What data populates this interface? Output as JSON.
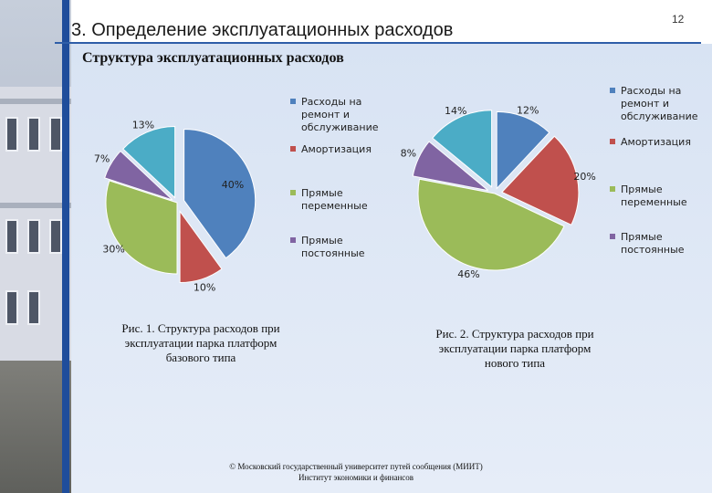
{
  "header": {
    "title": "3. Определение эксплуатационных расходов",
    "slide_number": "12"
  },
  "section_heading": "Структура эксплуатационных расходов",
  "colors": {
    "repair": "#4f81bd",
    "depreciation": "#c0504d",
    "variable": "#9bbb59",
    "constant": "#8064a2",
    "other": "#4bacc6"
  },
  "chart_data": [
    {
      "type": "pie",
      "slices": [
        {
          "label": "Расходы на ремонт и обслуживание",
          "value": 40,
          "text": "40%",
          "color": "#4f81bd"
        },
        {
          "label": "Амортизация",
          "value": 10,
          "text": "10%",
          "color": "#c0504d"
        },
        {
          "label": "Прямые переменные",
          "value": 30,
          "text": "30%",
          "color": "#9bbb59"
        },
        {
          "label": "Прямые постоянные",
          "value": 7,
          "text": "7%",
          "color": "#8064a2"
        },
        {
          "label": "",
          "value": 13,
          "text": "13%",
          "color": "#4bacc6"
        }
      ],
      "legend": [
        {
          "lines": [
            "Расходы на",
            "ремонт и",
            "обслуживание"
          ],
          "color": "#4f81bd"
        },
        {
          "lines": [
            "Амортизация"
          ],
          "color": "#c0504d"
        },
        {
          "lines": [
            "Прямые",
            "переменные"
          ],
          "color": "#9bbb59"
        },
        {
          "lines": [
            "Прямые",
            "постоянные"
          ],
          "color": "#8064a2"
        }
      ],
      "legend_position": "right",
      "caption": "Рис. 1. Структура расходов при эксплуатации парка платформ базового типа"
    },
    {
      "type": "pie",
      "slices": [
        {
          "label": "",
          "value": 12,
          "text": "12%",
          "color": "#4f81bd"
        },
        {
          "label": "Амортизация",
          "value": 20,
          "text": "20%",
          "color": "#c0504d"
        },
        {
          "label": "Прямые переменные",
          "value": 46,
          "text": "46%",
          "color": "#9bbb59"
        },
        {
          "label": "Прямые постоянные",
          "value": 8,
          "text": "8%",
          "color": "#8064a2"
        },
        {
          "label": "",
          "value": 14,
          "text": "14%",
          "color": "#4bacc6"
        }
      ],
      "legend": [
        {
          "lines": [
            "Расходы на",
            "ремонт и",
            "обслуживание"
          ],
          "color": "#4f81bd"
        },
        {
          "lines": [
            "Амортизация"
          ],
          "color": "#c0504d"
        },
        {
          "lines": [
            "Прямые",
            "переменные"
          ],
          "color": "#9bbb59"
        },
        {
          "lines": [
            "Прямые",
            "постоянные"
          ],
          "color": "#8064a2"
        }
      ],
      "legend_position": "right",
      "caption": "Рис. 2. Структура расходов при эксплуатации парка платформ нового типа"
    }
  ],
  "footer": {
    "line1": "© Московский государственный университет путей сообщения (МИИТ)",
    "line2": "Институт экономики и финансов"
  }
}
